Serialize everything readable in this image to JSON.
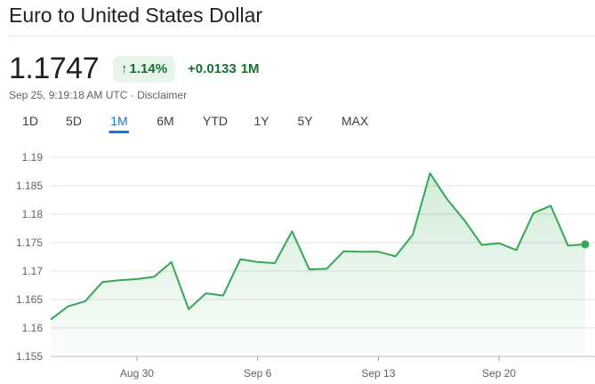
{
  "header": {
    "title": "Euro to United States Dollar"
  },
  "quote": {
    "price": "1.1747",
    "change_percent": "1.14%",
    "change_value": "+0.0133",
    "change_period": "1M",
    "timestamp": "Sep 25, 9:19:18 AM UTC",
    "separator": "·",
    "disclaimer": "Disclaimer"
  },
  "tabs": [
    "1D",
    "5D",
    "1M",
    "6M",
    "YTD",
    "1Y",
    "5Y",
    "MAX"
  ],
  "active_tab": "1M",
  "colors": {
    "line": "#34a853",
    "positive_text": "#137333",
    "positive_bg": "#e6f4ea",
    "active_tab": "#1a73e8",
    "grid": "#e0e0e0"
  },
  "chart_data": {
    "type": "area",
    "ylim": [
      1.155,
      1.19
    ],
    "yticks": [
      "1.19",
      "1.185",
      "1.18",
      "1.175",
      "1.17",
      "1.165",
      "1.16",
      "1.155"
    ],
    "xticks": [
      "Aug 30",
      "Sep 6",
      "Sep 13",
      "Sep 20"
    ],
    "grid": true,
    "x": [
      "Aug 25",
      "Aug 26",
      "Aug 27",
      "Aug 28",
      "Aug 29",
      "Aug 30",
      "Aug 31",
      "Sep 1",
      "Sep 2",
      "Sep 3",
      "Sep 4",
      "Sep 5",
      "Sep 6",
      "Sep 7",
      "Sep 8",
      "Sep 9",
      "Sep 10",
      "Sep 11",
      "Sep 12",
      "Sep 13",
      "Sep 14",
      "Sep 15",
      "Sep 16",
      "Sep 17",
      "Sep 18",
      "Sep 19",
      "Sep 20",
      "Sep 21",
      "Sep 22",
      "Sep 23",
      "Sep 24",
      "Sep 25"
    ],
    "values": [
      1.1615,
      1.1638,
      1.1647,
      1.1681,
      1.1684,
      1.1686,
      1.169,
      1.1716,
      1.1633,
      1.1661,
      1.1657,
      1.1721,
      1.1716,
      1.1714,
      1.177,
      1.1703,
      1.1704,
      1.1735,
      1.1734,
      1.1734,
      1.1726,
      1.1764,
      1.1872,
      1.1826,
      1.1789,
      1.1746,
      1.1749,
      1.1737,
      1.1802,
      1.1815,
      1.1745,
      1.1747
    ]
  }
}
